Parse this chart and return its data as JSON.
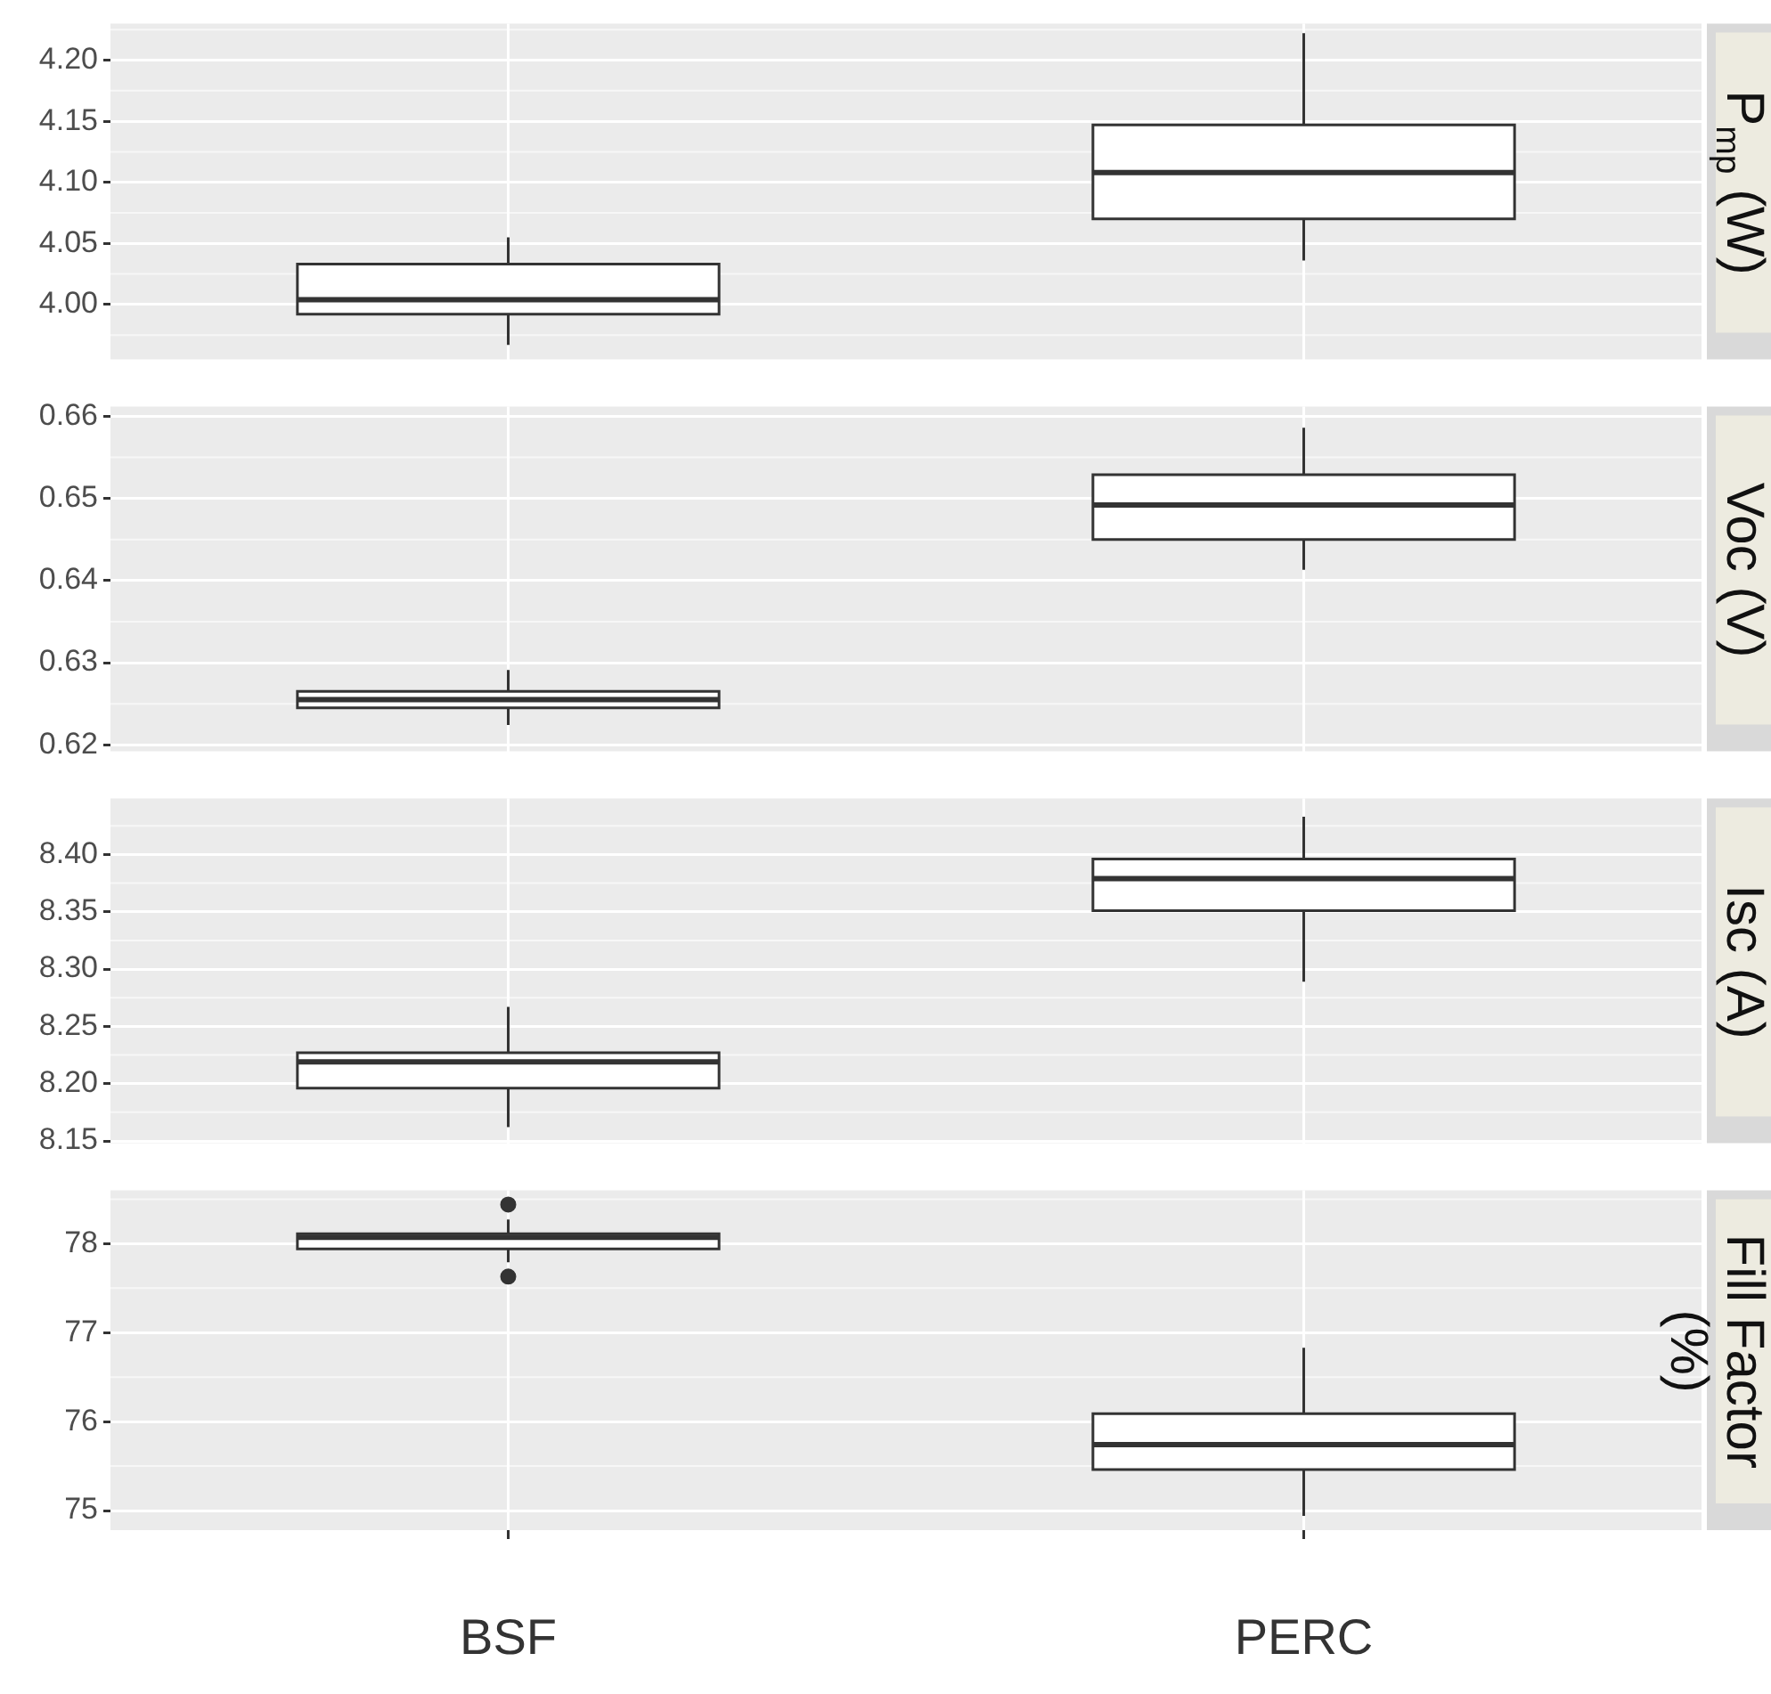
{
  "chart_data": [
    {
      "type": "box",
      "categories": [
        null,
        null
      ],
      "ylabel": "P$_{mp}$ (W)",
      "ylim": [
        3.955,
        4.23
      ],
      "yticks": [
        {
          "value": 4.0,
          "label": "4.00"
        },
        4.05,
        {
          "value": 4.1,
          "label": "4.10"
        },
        4.15,
        {
          "value": 4.2,
          "label": "4.20"
        }
      ],
      "grid": true,
      "tick_labels": "y",
      "boxes": [
        {
          "low": 3.967,
          "q1": 3.992,
          "median": 4.004,
          "q3": 4.033,
          "high": 4.055
        },
        {
          "low": 4.036,
          "q1": 4.07,
          "median": 4.108,
          "q3": 4.147,
          "high": 4.222
        }
      ]
    },
    {
      "type": "box",
      "categories": [
        null,
        null
      ],
      "ylabel": "Voc (V)",
      "ylim": [
        0.6192,
        0.6612
      ],
      "yticks": [
        0.62,
        0.63,
        0.64,
        0.65,
        0.66
      ],
      "grid": true,
      "tick_labels": "y",
      "boxes": [
        {
          "low": 0.6224,
          "q1": 0.6245,
          "median": 0.6255,
          "q3": 0.6265,
          "high": 0.6291
        },
        {
          "low": 0.6413,
          "q1": 0.645,
          "median": 0.6492,
          "q3": 0.6529,
          "high": 0.6586
        }
      ]
    },
    {
      "type": "box",
      "categories": [
        null,
        null
      ],
      "ylabel": "Isc (A)",
      "ylim": [
        8.148,
        8.449
      ],
      "yticks": [
        8.15,
        {
          "value": 8.2,
          "label": "8.20"
        },
        8.25,
        {
          "value": 8.3,
          "label": "8.30"
        },
        8.35,
        {
          "value": 8.4,
          "label": "8.40"
        }
      ],
      "grid": true,
      "tick_labels": "y",
      "boxes": [
        {
          "low": 8.162,
          "q1": 8.196,
          "median": 8.219,
          "q3": 8.227,
          "high": 8.267
        },
        {
          "low": 8.289,
          "q1": 8.351,
          "median": 8.379,
          "q3": 8.396,
          "high": 8.433
        }
      ]
    },
    {
      "type": "box",
      "categories": [
        "BSF",
        "PERC"
      ],
      "ylabel": "Fill Factor (%)",
      "ylim": [
        74.78,
        78.6
      ],
      "yticks": [
        75,
        76,
        77,
        78
      ],
      "grid": true,
      "boxes": [
        {
          "low": 77.79,
          "q1": 77.94,
          "median": 78.07,
          "q3": 78.11,
          "high": 78.27,
          "outliers": [
            78.44,
            77.63
          ]
        },
        {
          "low": 74.94,
          "q1": 75.46,
          "median": 75.74,
          "q3": 76.09,
          "high": 76.83
        }
      ]
    }
  ]
}
